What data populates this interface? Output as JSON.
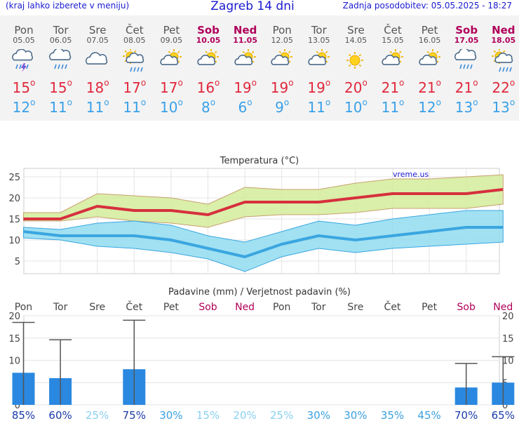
{
  "header": {
    "left_note": "(kraj lahko izberete v meniju)",
    "title": "Zagreb 14 dni",
    "updated": "Zadnja posodobitev: 05.05.2025 - 18:27"
  },
  "days": [
    {
      "name": "Pon",
      "date": "05.05",
      "weekend": false,
      "icon": "thunderstorm-icon",
      "hi": "15",
      "lo": "12"
    },
    {
      "name": "Tor",
      "date": "06.05",
      "weekend": false,
      "icon": "rain-cloud-icon",
      "hi": "15",
      "lo": "11"
    },
    {
      "name": "Sre",
      "date": "07.05",
      "weekend": false,
      "icon": "cloud-icon",
      "hi": "18",
      "lo": "11"
    },
    {
      "name": "Čet",
      "date": "08.05",
      "weekend": false,
      "icon": "sun-rain-cloud-icon",
      "hi": "17",
      "lo": "11"
    },
    {
      "name": "Pet",
      "date": "09.05",
      "weekend": false,
      "icon": "partly-cloudy-icon",
      "hi": "17",
      "lo": "10"
    },
    {
      "name": "Sob",
      "date": "10.05",
      "weekend": true,
      "icon": "partly-cloudy-icon",
      "hi": "16",
      "lo": "8"
    },
    {
      "name": "Ned",
      "date": "11.05",
      "weekend": true,
      "icon": "partly-cloudy-icon",
      "hi": "19",
      "lo": "6"
    },
    {
      "name": "Pon",
      "date": "12.05",
      "weekend": false,
      "icon": "partly-cloudy-icon",
      "hi": "19",
      "lo": "9"
    },
    {
      "name": "Tor",
      "date": "13.05",
      "weekend": false,
      "icon": "partly-cloudy-icon",
      "hi": "19",
      "lo": "11"
    },
    {
      "name": "Sre",
      "date": "14.05",
      "weekend": false,
      "icon": "sun-icon",
      "hi": "20",
      "lo": "10"
    },
    {
      "name": "Čet",
      "date": "15.05",
      "weekend": false,
      "icon": "partly-cloudy-icon",
      "hi": "21",
      "lo": "11"
    },
    {
      "name": "Pet",
      "date": "16.05",
      "weekend": false,
      "icon": "partly-cloudy-icon",
      "hi": "21",
      "lo": "12"
    },
    {
      "name": "Sob",
      "date": "17.05",
      "weekend": true,
      "icon": "rain-cloud-icon",
      "hi": "21",
      "lo": "13"
    },
    {
      "name": "Ned",
      "date": "18.05",
      "weekend": true,
      "icon": "sun-rain-cloud-icon",
      "hi": "22",
      "lo": "13"
    }
  ],
  "colors": {
    "max_line": "#d6303e",
    "max_band": "#d4ec9a",
    "min_line": "#3aa6e0",
    "min_band": "#90dcf0",
    "precip_bar": "#2a88e0",
    "weekend": "#b0005a"
  },
  "chart_data": [
    {
      "type": "line",
      "title": "Temperatura (°C)",
      "watermark": "vreme.us",
      "ylim": [
        2,
        27
      ],
      "yticks": [
        5,
        10,
        15,
        20,
        25
      ],
      "categories": [
        "05.05",
        "06.05",
        "07.05",
        "08.05",
        "09.05",
        "10.05",
        "11.05",
        "12.05",
        "13.05",
        "14.05",
        "15.05",
        "16.05",
        "17.05",
        "18.05"
      ],
      "series": [
        {
          "values": [
            15,
            15,
            18,
            17,
            17,
            16,
            19,
            19,
            19,
            20,
            21,
            21,
            21,
            22
          ],
          "band_low": [
            14.5,
            14.5,
            15.5,
            14.5,
            14,
            13,
            15.5,
            16,
            16,
            16.5,
            17.5,
            17.5,
            17.5,
            18.5
          ],
          "band_high": [
            16.5,
            16.5,
            21,
            20.5,
            20,
            18.5,
            22.5,
            22,
            22,
            23.5,
            24.5,
            24.5,
            25,
            25.5
          ]
        },
        {
          "values": [
            12,
            11,
            11,
            11,
            10,
            8,
            6,
            9,
            11,
            10,
            11,
            12,
            13,
            13
          ],
          "band_low": [
            10.5,
            10,
            8.5,
            8,
            7,
            5.5,
            2.5,
            6,
            8,
            7,
            8,
            8.5,
            9,
            9.5
          ],
          "band_high": [
            13,
            12.5,
            14,
            14.5,
            13.5,
            11,
            9.5,
            12,
            14.5,
            13.5,
            15,
            16,
            17,
            17
          ]
        }
      ]
    },
    {
      "type": "bar",
      "title": "Padavine (mm) / Verjetnost padavin (%)",
      "ylim": [
        0,
        20
      ],
      "yticks": [
        0,
        5,
        10,
        15,
        20
      ],
      "categories": [
        "Pon",
        "Tor",
        "Sre",
        "Čet",
        "Pet",
        "Sob",
        "Ned",
        "Pon",
        "Tor",
        "Sre",
        "Čet",
        "Pet",
        "Sob",
        "Ned"
      ],
      "weekend": [
        false,
        false,
        false,
        false,
        false,
        true,
        true,
        false,
        false,
        false,
        false,
        false,
        true,
        true
      ],
      "values": [
        7.2,
        6,
        0,
        8,
        0,
        0,
        0,
        0,
        0,
        0,
        0,
        0,
        3.9,
        5
      ],
      "error_high": [
        18.5,
        14.6,
        0,
        19,
        0,
        0,
        0,
        0,
        0,
        0,
        0,
        0,
        9.3,
        10.8
      ],
      "probability": [
        "85%",
        "60%",
        "25%",
        "75%",
        "30%",
        "15%",
        "20%",
        "25%",
        "30%",
        "30%",
        "35%",
        "45%",
        "70%",
        "65%"
      ],
      "probability_values": [
        85,
        60,
        25,
        75,
        30,
        15,
        20,
        25,
        30,
        30,
        35,
        45,
        70,
        65
      ]
    }
  ]
}
